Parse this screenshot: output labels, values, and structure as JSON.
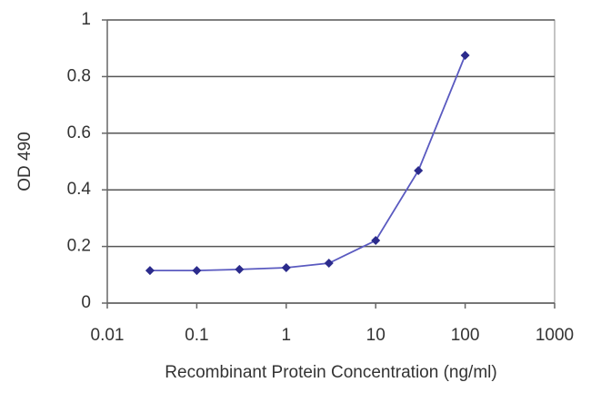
{
  "chart_data": {
    "type": "line",
    "x_label": "Recombinant Protein Concentration (ng/ml)",
    "y_label": "OD 490",
    "x": [
      0.03,
      0.1,
      0.3,
      1,
      3,
      10,
      30,
      100
    ],
    "values": [
      0.115,
      0.115,
      0.119,
      0.125,
      0.141,
      0.221,
      0.468,
      0.875
    ],
    "color": "#2b2b8c",
    "xscale": "log",
    "xlim": [
      0.01,
      1000
    ],
    "xticks": [
      0.01,
      0.1,
      1,
      10,
      100,
      1000
    ],
    "ylim": [
      0,
      1
    ],
    "yticks": [
      0,
      0.2,
      0.4,
      0.6,
      0.8,
      1
    ],
    "grid": true
  }
}
